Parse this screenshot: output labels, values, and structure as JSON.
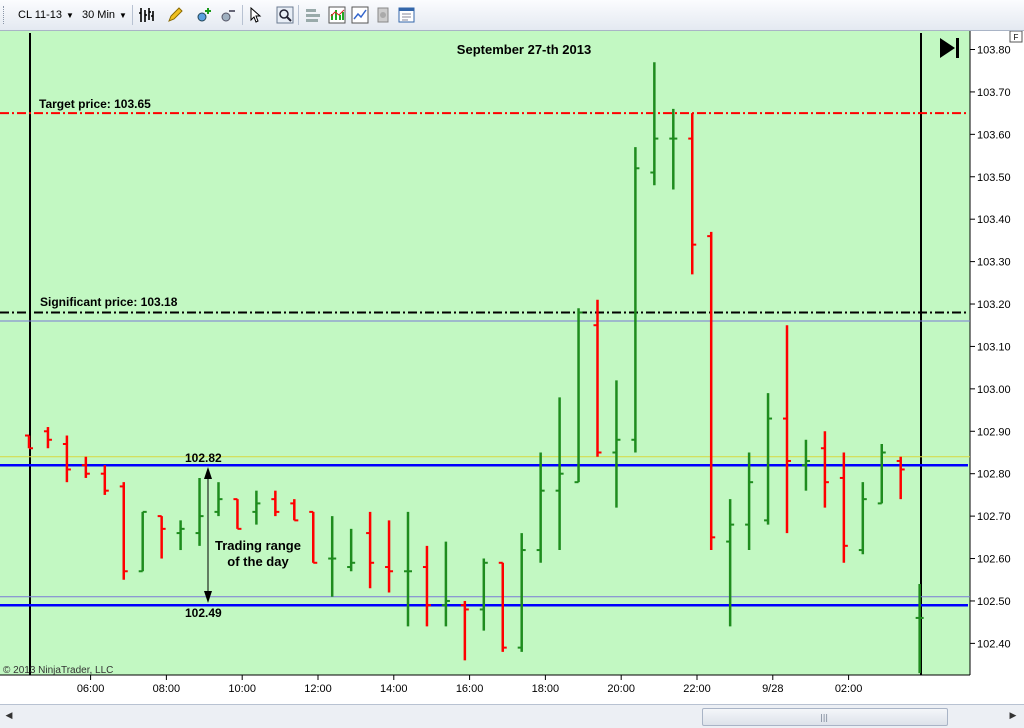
{
  "toolbar": {
    "instrument": "CL 11-13",
    "interval": "30 Min"
  },
  "chart_data": {
    "type": "ohlc",
    "title": "September 27-th 2013",
    "copyright": "© 2013 NinjaTrader, LLC",
    "y_ticks": [
      "103.80",
      "103.70",
      "103.60",
      "103.50",
      "103.40",
      "103.30",
      "103.20",
      "103.10",
      "103.00",
      "102.90",
      "102.80",
      "102.70",
      "102.60",
      "102.50",
      "102.40"
    ],
    "ylim": [
      102.33,
      103.83
    ],
    "x_ticks": [
      {
        "label": "06:00",
        "bar": 3.25
      },
      {
        "label": "08:00",
        "bar": 7.25
      },
      {
        "label": "10:00",
        "bar": 11.25
      },
      {
        "label": "12:00",
        "bar": 15.25
      },
      {
        "label": "14:00",
        "bar": 19.25
      },
      {
        "label": "16:00",
        "bar": 23.25
      },
      {
        "label": "18:00",
        "bar": 27.25
      },
      {
        "label": "20:00",
        "bar": 31.25
      },
      {
        "label": "22:00",
        "bar": 35.25
      },
      {
        "label": "9/28",
        "bar": 39.25
      },
      {
        "label": "02:00",
        "bar": 43.25
      }
    ],
    "up_color": "#1e8c1e",
    "down_color": "#ff0000",
    "background": "#c2f8c2",
    "bars": [
      {
        "o": 102.89,
        "h": 102.89,
        "l": 102.86,
        "c": 102.86
      },
      {
        "o": 102.9,
        "h": 102.91,
        "l": 102.86,
        "c": 102.88
      },
      {
        "o": 102.87,
        "h": 102.89,
        "l": 102.78,
        "c": 102.81
      },
      {
        "o": 102.82,
        "h": 102.84,
        "l": 102.79,
        "c": 102.8
      },
      {
        "o": 102.8,
        "h": 102.82,
        "l": 102.75,
        "c": 102.76
      },
      {
        "o": 102.77,
        "h": 102.78,
        "l": 102.55,
        "c": 102.57
      },
      {
        "o": 102.57,
        "h": 102.71,
        "l": 102.57,
        "c": 102.71
      },
      {
        "o": 102.7,
        "h": 102.7,
        "l": 102.6,
        "c": 102.67
      },
      {
        "o": 102.66,
        "h": 102.69,
        "l": 102.62,
        "c": 102.67
      },
      {
        "o": 102.66,
        "h": 102.79,
        "l": 102.63,
        "c": 102.7
      },
      {
        "o": 102.71,
        "h": 102.78,
        "l": 102.7,
        "c": 102.74
      },
      {
        "o": 102.74,
        "h": 102.74,
        "l": 102.67,
        "c": 102.67
      },
      {
        "o": 102.71,
        "h": 102.76,
        "l": 102.68,
        "c": 102.73
      },
      {
        "o": 102.74,
        "h": 102.76,
        "l": 102.7,
        "c": 102.71
      },
      {
        "o": 102.73,
        "h": 102.74,
        "l": 102.69,
        "c": 102.69
      },
      {
        "o": 102.71,
        "h": 102.71,
        "l": 102.59,
        "c": 102.59
      },
      {
        "o": 102.6,
        "h": 102.7,
        "l": 102.51,
        "c": 102.6
      },
      {
        "o": 102.58,
        "h": 102.67,
        "l": 102.57,
        "c": 102.59
      },
      {
        "o": 102.66,
        "h": 102.71,
        "l": 102.53,
        "c": 102.59
      },
      {
        "o": 102.58,
        "h": 102.69,
        "l": 102.52,
        "c": 102.57
      },
      {
        "o": 102.57,
        "h": 102.71,
        "l": 102.44,
        "c": 102.57
      },
      {
        "o": 102.58,
        "h": 102.63,
        "l": 102.44,
        "c": 102.49
      },
      {
        "o": 102.49,
        "h": 102.64,
        "l": 102.44,
        "c": 102.5
      },
      {
        "o": 102.49,
        "h": 102.5,
        "l": 102.36,
        "c": 102.48
      },
      {
        "o": 102.48,
        "h": 102.6,
        "l": 102.43,
        "c": 102.59
      },
      {
        "o": 102.59,
        "h": 102.59,
        "l": 102.38,
        "c": 102.39
      },
      {
        "o": 102.39,
        "h": 102.66,
        "l": 102.38,
        "c": 102.62
      },
      {
        "o": 102.62,
        "h": 102.85,
        "l": 102.59,
        "c": 102.76
      },
      {
        "o": 102.76,
        "h": 102.98,
        "l": 102.62,
        "c": 102.8
      },
      {
        "o": 102.78,
        "h": 103.19,
        "l": 102.78,
        "c": 103.18
      },
      {
        "o": 103.15,
        "h": 103.21,
        "l": 102.84,
        "c": 102.85
      },
      {
        "o": 102.85,
        "h": 103.02,
        "l": 102.72,
        "c": 102.88
      },
      {
        "o": 102.88,
        "h": 103.57,
        "l": 102.85,
        "c": 103.52
      },
      {
        "o": 103.51,
        "h": 103.77,
        "l": 103.48,
        "c": 103.59
      },
      {
        "o": 103.59,
        "h": 103.66,
        "l": 103.47,
        "c": 103.59
      },
      {
        "o": 103.59,
        "h": 103.65,
        "l": 103.27,
        "c": 103.34
      },
      {
        "o": 103.36,
        "h": 103.37,
        "l": 102.62,
        "c": 102.65
      },
      {
        "o": 102.64,
        "h": 102.74,
        "l": 102.44,
        "c": 102.68
      },
      {
        "o": 102.68,
        "h": 102.85,
        "l": 102.62,
        "c": 102.78
      },
      {
        "o": 102.69,
        "h": 102.99,
        "l": 102.68,
        "c": 102.93
      },
      {
        "o": 102.93,
        "h": 103.15,
        "l": 102.66,
        "c": 102.83
      },
      {
        "o": 102.82,
        "h": 102.88,
        "l": 102.76,
        "c": 102.83
      },
      {
        "o": 102.86,
        "h": 102.9,
        "l": 102.72,
        "c": 102.78
      },
      {
        "o": 102.79,
        "h": 102.85,
        "l": 102.59,
        "c": 102.63
      },
      {
        "o": 102.62,
        "h": 102.78,
        "l": 102.61,
        "c": 102.74
      },
      {
        "o": 102.73,
        "h": 102.87,
        "l": 102.73,
        "c": 102.85
      },
      {
        "o": 102.83,
        "h": 102.84,
        "l": 102.74,
        "c": 102.81
      },
      {
        "o": 102.46,
        "h": 102.54,
        "l": 102.33,
        "c": 102.46
      }
    ],
    "annotations": [
      {
        "id": "target",
        "text": "Target price: 103.65",
        "price": 103.65,
        "color": "#ff0000",
        "style": "dashdot"
      },
      {
        "id": "significant",
        "text": "Significant price: 103.18",
        "price": 103.18,
        "color": "#000000",
        "style": "dashdot"
      },
      {
        "id": "high",
        "text": "102.82",
        "price": 102.82,
        "color": "#0000ff",
        "style": "solid"
      },
      {
        "id": "low",
        "text": "102.49",
        "price": 102.49,
        "color": "#0000ff",
        "style": "solid"
      }
    ],
    "range_text": [
      "Trading range",
      "of the day"
    ],
    "extra_lines": [
      {
        "price": 103.16,
        "color": "#7a7ad6"
      },
      {
        "price": 102.84,
        "color": "#d8d840"
      },
      {
        "price": 102.51,
        "color": "#7a7ad6"
      }
    ]
  }
}
